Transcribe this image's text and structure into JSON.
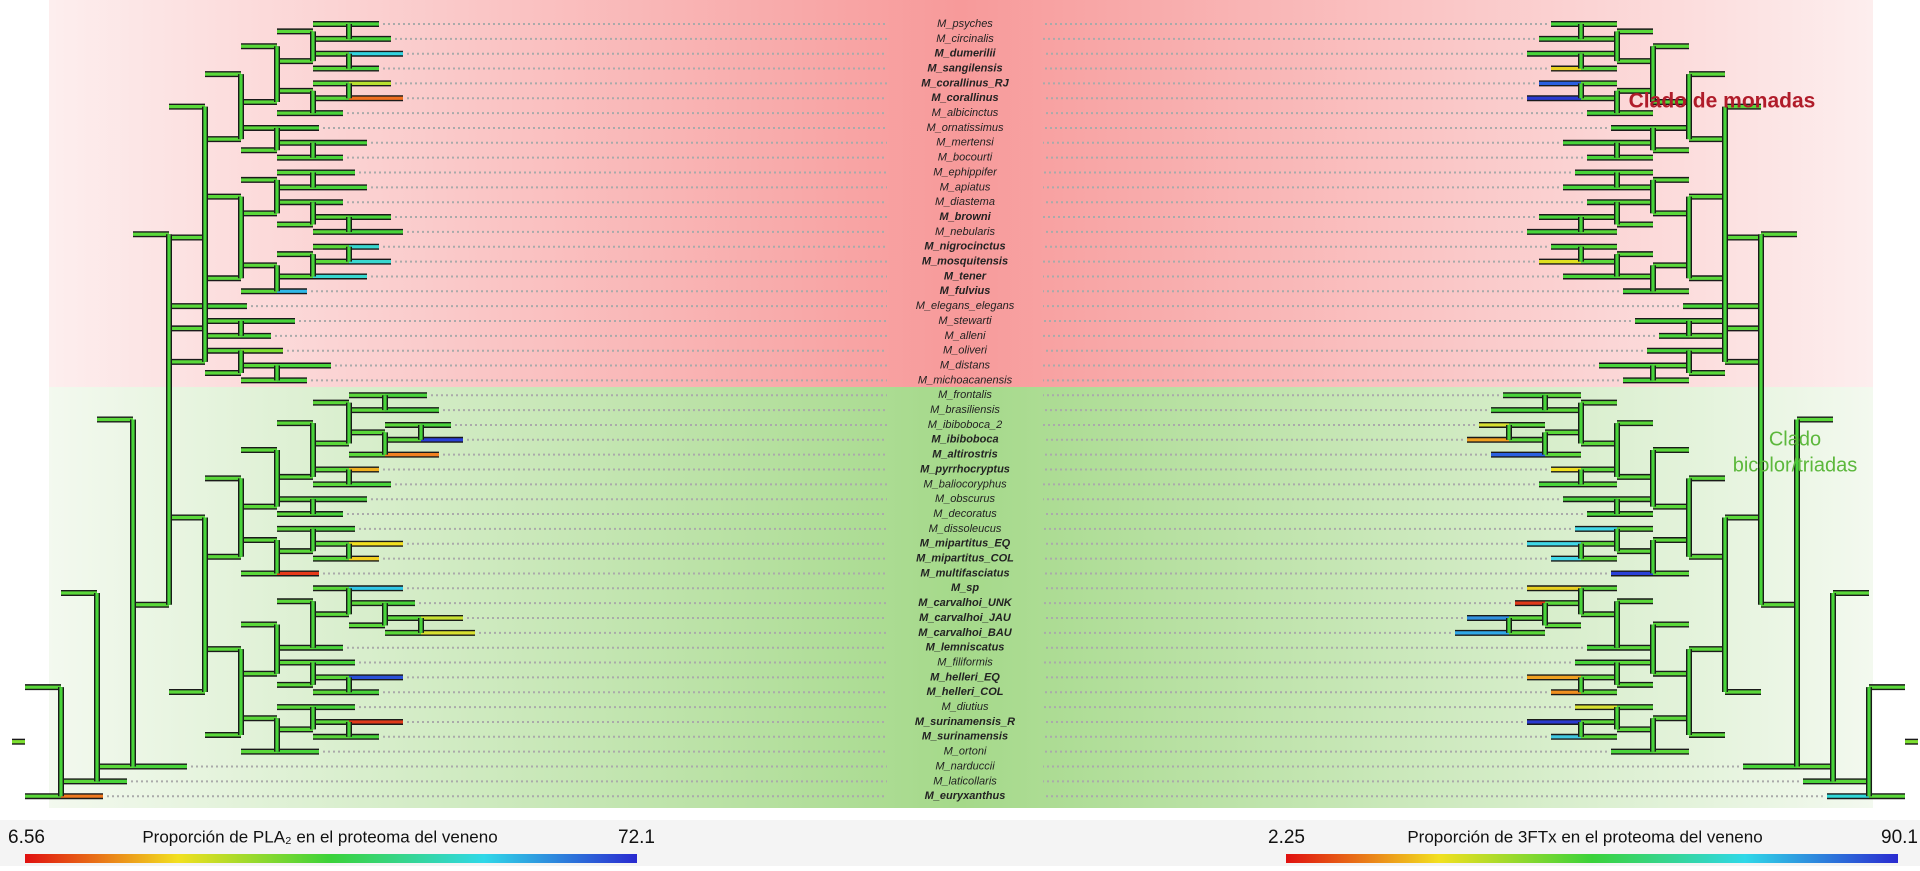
{
  "taxa": [
    {
      "name": "M_psyches",
      "bold": false
    },
    {
      "name": "M_circinalis",
      "bold": false
    },
    {
      "name": "M_dumerilii",
      "bold": true
    },
    {
      "name": "M_sangilensis",
      "bold": true
    },
    {
      "name": "M_corallinus_RJ",
      "bold": true
    },
    {
      "name": "M_corallinus",
      "bold": true
    },
    {
      "name": "M_albicinctus",
      "bold": false
    },
    {
      "name": "M_ornatissimus",
      "bold": false
    },
    {
      "name": "M_mertensi",
      "bold": false
    },
    {
      "name": "M_bocourti",
      "bold": false
    },
    {
      "name": "M_ephippifer",
      "bold": false
    },
    {
      "name": "M_apiatus",
      "bold": false
    },
    {
      "name": "M_diastema",
      "bold": false
    },
    {
      "name": "M_browni",
      "bold": true
    },
    {
      "name": "M_nebularis",
      "bold": false
    },
    {
      "name": "M_nigrocinctus",
      "bold": true
    },
    {
      "name": "M_mosquitensis",
      "bold": true
    },
    {
      "name": "M_tener",
      "bold": true
    },
    {
      "name": "M_fulvius",
      "bold": true
    },
    {
      "name": "M_elegans_elegans",
      "bold": false
    },
    {
      "name": "M_stewarti",
      "bold": false
    },
    {
      "name": "M_alleni",
      "bold": false
    },
    {
      "name": "M_oliveri",
      "bold": false
    },
    {
      "name": "M_distans",
      "bold": false
    },
    {
      "name": "M_michoacanensis",
      "bold": false
    },
    {
      "name": "M_frontalis",
      "bold": false
    },
    {
      "name": "M_brasiliensis",
      "bold": false
    },
    {
      "name": "M_ibiboboca_2",
      "bold": false
    },
    {
      "name": "M_ibiboboca",
      "bold": true
    },
    {
      "name": "M_altirostris",
      "bold": true
    },
    {
      "name": "M_pyrrhocryptus",
      "bold": true
    },
    {
      "name": "M_baliocoryphus",
      "bold": false
    },
    {
      "name": "M_obscurus",
      "bold": false
    },
    {
      "name": "M_decoratus",
      "bold": false
    },
    {
      "name": "M_dissoleucus",
      "bold": false
    },
    {
      "name": "M_mipartitus_EQ",
      "bold": true
    },
    {
      "name": "M_mipartitus_COL",
      "bold": true
    },
    {
      "name": "M_multifasciatus",
      "bold": true
    },
    {
      "name": "M_sp",
      "bold": true
    },
    {
      "name": "M_carvalhoi_UNK",
      "bold": true
    },
    {
      "name": "M_carvalhoi_JAU",
      "bold": true
    },
    {
      "name": "M_carvalhoi_BAU",
      "bold": true
    },
    {
      "name": "M_lemniscatus",
      "bold": true
    },
    {
      "name": "M_filiformis",
      "bold": false
    },
    {
      "name": "M_helleri_EQ",
      "bold": true
    },
    {
      "name": "M_helleri_COL",
      "bold": true
    },
    {
      "name": "M_diutius",
      "bold": false
    },
    {
      "name": "M_surinamensis_R",
      "bold": true
    },
    {
      "name": "M_surinamensis",
      "bold": true
    },
    {
      "name": "M_ortoni",
      "bold": false
    },
    {
      "name": "M_narduccii",
      "bold": false
    },
    {
      "name": "M_laticollaris",
      "bold": false
    },
    {
      "name": "M_euryxanthus",
      "bold": true
    }
  ],
  "clades": {
    "top": "Clado de monadas",
    "bottom": [
      "Clado",
      "bicolor/triadas"
    ]
  },
  "legend_left": {
    "min": 6.56,
    "title": "Proporción de PLA₂ en el proteoma del veneno",
    "max": 72.1
  },
  "legend_right": {
    "min": 2.25,
    "title": "Proporción de 3FTx en el proteoma del veneno",
    "max": 90.1
  }
}
